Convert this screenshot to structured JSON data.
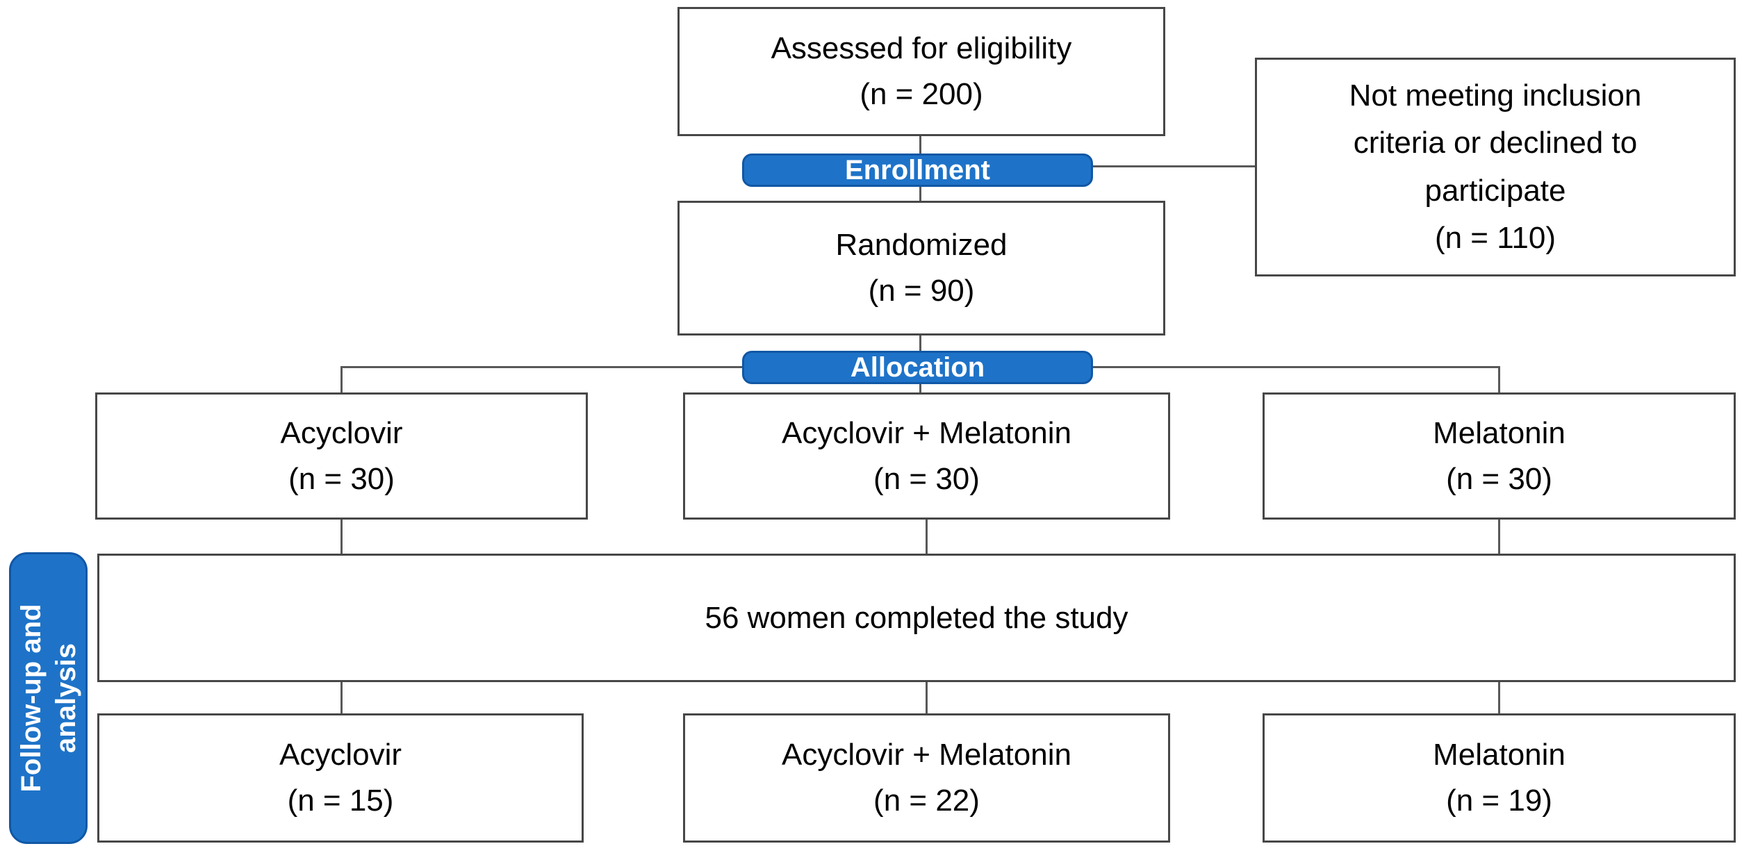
{
  "flowchart": {
    "title_hint": "CONSORT participant flow diagram",
    "badges": {
      "enrollment": "Enrollment",
      "allocation": "Allocation",
      "followup": "Follow-up and\nanalysis"
    },
    "boxes": {
      "assessed": "Assessed for eligibility\n(n = 200)",
      "not_meeting": "Not meeting inclusion\ncriteria or declined to\nparticipate\n(n = 110)",
      "randomized": "Randomized\n(n = 90)",
      "alloc_acyclovir": "Acyclovir\n(n = 30)",
      "alloc_acyclovir_melatonin": "Acyclovir + Melatonin\n(n = 30)",
      "alloc_melatonin": "Melatonin\n(n = 30)",
      "completed": "56 women completed the study",
      "followup_acyclovir": "Acyclovir\n(n = 15)",
      "followup_acyclovir_melatonin": "Acyclovir + Melatonin\n(n = 22)",
      "followup_melatonin": "Melatonin\n(n = 19)"
    },
    "counts": {
      "assessed": 200,
      "excluded": 110,
      "randomized": 90,
      "allocated_acyclovir": 30,
      "allocated_acyclovir_melatonin": 30,
      "allocated_melatonin": 30,
      "completed_total": 56,
      "analyzed_acyclovir": 15,
      "analyzed_acyclovir_melatonin": 22,
      "analyzed_melatonin": 19
    },
    "colors": {
      "badge_fill": "#1e73c8",
      "badge_border": "#1157a5",
      "box_border": "#474747",
      "connector": "#595959",
      "text": "#000000",
      "background": "#ffffff"
    }
  }
}
